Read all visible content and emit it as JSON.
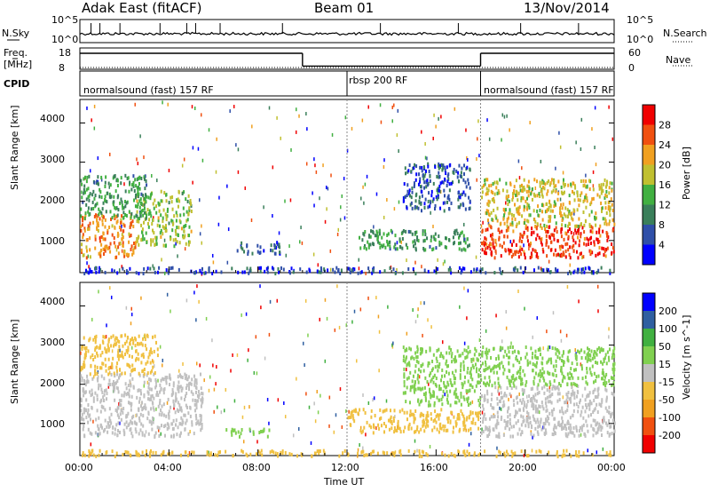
{
  "header": {
    "station": "Adak East (fitACF)",
    "beam": "Beam 01",
    "date": "13/Nov/2014"
  },
  "side_labels": {
    "nsky": "N.Sky",
    "nsearch": "N.Search",
    "freq": "Freq.",
    "mhz": "[MHz]",
    "cpid": "CPID",
    "nave": "Nave"
  },
  "strip_axes": {
    "noise_left_top": "10^5",
    "noise_left_bottom": "10^0",
    "noise_right_top": "10^5",
    "noise_right_bottom": "10^0",
    "freq_top": "18",
    "freq_bottom": "8",
    "nave_top": "60",
    "nave_bottom": "0"
  },
  "cpid_segments": [
    {
      "label": "normalsound (fast) 157 RF",
      "start_hour": 0,
      "end_hour": 12
    },
    {
      "label": "rbsp 200 RF",
      "start_hour": 12,
      "end_hour": 18
    },
    {
      "label": "normalsound (fast) 157 RF",
      "start_hour": 18,
      "end_hour": 24
    }
  ],
  "freq_trace": [
    {
      "start_hour": 0,
      "end_hour": 10,
      "level": 0.75
    },
    {
      "start_hour": 10,
      "end_hour": 18,
      "level": 0.15
    },
    {
      "start_hour": 18,
      "end_hour": 24,
      "level": 0.75
    }
  ],
  "chart_data": [
    {
      "type": "heatmap",
      "title": "Power",
      "ylabel": "Slant Range [km]",
      "xlabel": "Time UT",
      "xlim_hours": [
        0,
        24
      ],
      "ylim_km": [
        180,
        4600
      ],
      "y_ticks": [
        "1000",
        "2000",
        "3000",
        "4000"
      ],
      "colorbar": {
        "label": "Power [dB]",
        "ticks": [
          "4",
          "8",
          "12",
          "16",
          "20",
          "24",
          "28"
        ],
        "range": [
          0,
          30
        ],
        "colors": [
          "#0000ff",
          "#2f4fa8",
          "#3a7f5a",
          "#41b041",
          "#c0c030",
          "#f0a020",
          "#f05010",
          "#f00000"
        ]
      },
      "echo_regions": [
        {
          "t0": 0.0,
          "t1": 2.5,
          "r0": 600,
          "r1": 1700,
          "value": 22
        },
        {
          "t0": 2.5,
          "t1": 5.0,
          "r0": 900,
          "r1": 2300,
          "value": 15
        },
        {
          "t0": 0.0,
          "t1": 3.0,
          "r0": 1600,
          "r1": 2700,
          "value": 11
        },
        {
          "t0": 7.0,
          "t1": 9.0,
          "r0": 700,
          "r1": 1000,
          "value": 6
        },
        {
          "t0": 12.5,
          "t1": 17.5,
          "r0": 800,
          "r1": 1300,
          "value": 11
        },
        {
          "t0": 14.5,
          "t1": 17.5,
          "r0": 1800,
          "r1": 3000,
          "value": 6
        },
        {
          "t0": 18.0,
          "t1": 24.0,
          "r0": 600,
          "r1": 1400,
          "value": 26
        },
        {
          "t0": 18.0,
          "t1": 24.0,
          "r0": 1400,
          "r1": 2600,
          "value": 18
        },
        {
          "t0": 0.0,
          "t1": 24.0,
          "r0": 200,
          "r1": 350,
          "value": 5
        }
      ]
    },
    {
      "type": "heatmap",
      "title": "Velocity",
      "ylabel": "Slant Range [km]",
      "xlabel": "Time UT",
      "xlim_hours": [
        0,
        24
      ],
      "ylim_km": [
        180,
        4600
      ],
      "y_ticks": [
        "1000",
        "2000",
        "3000",
        "4000"
      ],
      "colorbar": {
        "label": "Velocity [m s^-1]",
        "ticks": [
          "200",
          "100",
          "50",
          "15",
          "-15",
          "-50",
          "-100",
          "-200"
        ],
        "range": [
          -250,
          250
        ],
        "colors": [
          "#f00000",
          "#f05010",
          "#f0a020",
          "#f0c040",
          "#c0c0c0",
          "#80d050",
          "#40b040",
          "#2f5fa0",
          "#0000ff"
        ]
      },
      "echo_regions": [
        {
          "t0": 0.0,
          "t1": 5.5,
          "r0": 700,
          "r1": 2300,
          "value": 0
        },
        {
          "t0": 0.0,
          "t1": 3.5,
          "r0": 2300,
          "r1": 3300,
          "value": -40
        },
        {
          "t0": 6.5,
          "t1": 8.5,
          "r0": 700,
          "r1": 900,
          "value": 60
        },
        {
          "t0": 12.0,
          "t1": 18.0,
          "r0": 800,
          "r1": 1400,
          "value": -40
        },
        {
          "t0": 14.5,
          "t1": 18.0,
          "r0": 1500,
          "r1": 3000,
          "value": 60
        },
        {
          "t0": 18.0,
          "t1": 24.0,
          "r0": 700,
          "r1": 2000,
          "value": 0
        },
        {
          "t0": 18.0,
          "t1": 24.0,
          "r0": 2000,
          "r1": 3000,
          "value": 40
        },
        {
          "t0": 0.0,
          "t1": 24.0,
          "r0": 200,
          "r1": 350,
          "value": -40
        }
      ]
    }
  ],
  "time_axis": {
    "ticks": [
      "00:00",
      "04:00",
      "08:00",
      "12:00",
      "16:00",
      "20:00",
      "00:00"
    ],
    "label": "Time UT"
  },
  "noise_bumps": [
    0.5,
    0.9,
    1.8,
    3.6,
    4.8,
    5.2,
    6.3,
    9.1,
    13.5,
    17.0,
    19.8,
    22.4
  ]
}
